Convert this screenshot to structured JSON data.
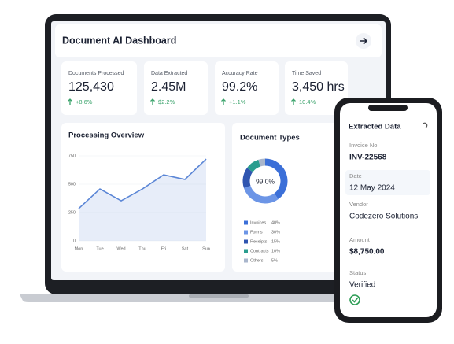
{
  "header": {
    "title": "Document AI Dashboard"
  },
  "kpis": [
    {
      "label": "Documents Processed",
      "value": "125,430",
      "change": "+8.6%"
    },
    {
      "label": "Data Extracted",
      "value": "2.45M",
      "change": "$2.2%"
    },
    {
      "label": "Accuracy Rate",
      "value": "99.2%",
      "change": "+1.1%"
    },
    {
      "label": "Time Saved",
      "value": "3,450 hrs",
      "change": "10.4%"
    }
  ],
  "processing_overview": {
    "title": "Processing Overview",
    "chart": {
      "type": "line",
      "categories": [
        "Mon",
        "Tue",
        "Wed",
        "Thu",
        "Fri",
        "Sat",
        "Sun"
      ],
      "values": [
        285,
        458,
        354,
        458,
        583,
        542,
        722
      ],
      "color": "#5b86d6",
      "ylim": [
        0,
        750
      ],
      "yticks": [
        0,
        250,
        500,
        750
      ],
      "grid": true
    }
  },
  "document_types": {
    "title": "Document Types",
    "center_label": "99.0%",
    "chart": {
      "type": "pie",
      "categories": [
        "Invoices",
        "Forms",
        "Receipts",
        "Contracts",
        "Others"
      ],
      "values": [
        40,
        30,
        15,
        10,
        5
      ],
      "value_labels": [
        "40%",
        "30%",
        "15%",
        "10%",
        "5%"
      ],
      "colors": [
        "#3b6fd8",
        "#6c95e6",
        "#2f55b0",
        "#2a9d8f",
        "#a9b6cc"
      ]
    }
  },
  "phone": {
    "title": "Extracted Data",
    "fields": [
      {
        "label": "Invoice No.",
        "value": "INV-22568"
      },
      {
        "label": "Date",
        "value": "12 May 2024"
      },
      {
        "label": "Vendor",
        "value": "Codezero Solutions"
      },
      {
        "label": "Amount",
        "value": "$8,750.00"
      },
      {
        "label": "Status",
        "value": "Verified"
      }
    ]
  }
}
